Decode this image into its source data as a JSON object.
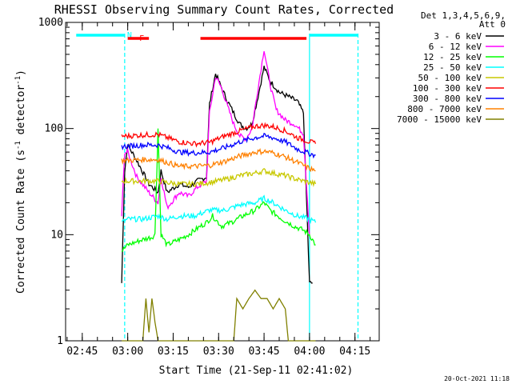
{
  "chart_data": {
    "type": "line",
    "title": "RHESSI Observing Summary Count Rates, Corrected",
    "xlabel": "Start Time (21-Sep-11 02:41:02)",
    "ylabel": "Corrected Count Rate (s⁻¹ detector⁻¹)",
    "ylabel_parts": {
      "prefix": "Corrected Count Rate (s",
      "exp1": "-1",
      "middle": " detector",
      "exp2": "-1",
      "suffix": ")"
    },
    "yscale": "log",
    "ylim": [
      1,
      1000
    ],
    "xlim_minutes_after_0245": [
      -5.5,
      98
    ],
    "x_ticks": [
      "02:45",
      "03:00",
      "03:15",
      "03:30",
      "03:45",
      "04:00",
      "04:15"
    ],
    "y_ticks": [
      "1",
      "10",
      "100",
      "1000"
    ],
    "legend_header": [
      "Det 1,3,4,5,6,9,",
      "Att 0"
    ],
    "series": [
      {
        "name": "3 - 6 keV",
        "color": "#000000",
        "points": [
          [
            "02:58",
            3.5
          ],
          [
            "02:59",
            40
          ],
          [
            "03:00",
            70
          ],
          [
            "03:03",
            50
          ],
          [
            "03:07",
            30
          ],
          [
            "03:10",
            25
          ],
          [
            "03:11",
            40
          ],
          [
            "03:13",
            25
          ],
          [
            "03:17",
            30
          ],
          [
            "03:20",
            28
          ],
          [
            "03:23",
            32
          ],
          [
            "03:26",
            35
          ],
          [
            "03:27",
            170
          ],
          [
            "03:29",
            330
          ],
          [
            "03:31",
            240
          ],
          [
            "03:33",
            180
          ],
          [
            "03:35",
            140
          ],
          [
            "03:37",
            110
          ],
          [
            "03:39",
            100
          ],
          [
            "03:41",
            110
          ],
          [
            "03:43",
            200
          ],
          [
            "03:45",
            380
          ],
          [
            "03:47",
            280
          ],
          [
            "03:50",
            220
          ],
          [
            "03:53",
            200
          ],
          [
            "03:56",
            180
          ],
          [
            "03:58",
            140
          ],
          [
            "04:00",
            3.5
          ],
          [
            "04:01",
            3.5
          ]
        ]
      },
      {
        "name": "6 - 12 keV",
        "color": "#ff00ff",
        "points": [
          [
            "02:58",
            15
          ],
          [
            "02:59",
            60
          ],
          [
            "03:00",
            60
          ],
          [
            "03:03",
            35
          ],
          [
            "03:07",
            25
          ],
          [
            "03:10",
            20
          ],
          [
            "03:11",
            35
          ],
          [
            "03:13",
            18
          ],
          [
            "03:17",
            25
          ],
          [
            "03:20",
            23
          ],
          [
            "03:23",
            28
          ],
          [
            "03:26",
            32
          ],
          [
            "03:27",
            140
          ],
          [
            "03:29",
            310
          ],
          [
            "03:31",
            240
          ],
          [
            "03:33",
            160
          ],
          [
            "03:35",
            110
          ],
          [
            "03:37",
            85
          ],
          [
            "03:39",
            80
          ],
          [
            "03:41",
            100
          ],
          [
            "03:43",
            240
          ],
          [
            "03:45",
            560
          ],
          [
            "03:47",
            260
          ],
          [
            "03:49",
            150
          ],
          [
            "03:52",
            120
          ],
          [
            "03:55",
            110
          ],
          [
            "03:58",
            90
          ],
          [
            "04:00",
            10
          ]
        ]
      },
      {
        "name": "12 - 25 keV",
        "color": "#00ff00",
        "points": [
          [
            "02:58",
            7
          ],
          [
            "03:00",
            8
          ],
          [
            "03:05",
            9
          ],
          [
            "03:08",
            9.5
          ],
          [
            "03:09",
            10
          ],
          [
            "03:10",
            100
          ],
          [
            "03:11",
            10
          ],
          [
            "03:13",
            8
          ],
          [
            "03:17",
            9
          ],
          [
            "03:20",
            10
          ],
          [
            "03:24",
            12
          ],
          [
            "03:26",
            13
          ],
          [
            "03:28",
            15
          ],
          [
            "03:31",
            12
          ],
          [
            "03:34",
            13
          ],
          [
            "03:38",
            15
          ],
          [
            "03:42",
            17
          ],
          [
            "03:45",
            20
          ],
          [
            "03:47",
            17
          ],
          [
            "03:51",
            14
          ],
          [
            "03:55",
            12
          ],
          [
            "03:58",
            11
          ],
          [
            "04:00",
            10
          ],
          [
            "04:02",
            8
          ]
        ]
      },
      {
        "name": "25 - 50 keV",
        "color": "#00ffff",
        "points": [
          [
            "02:58",
            13
          ],
          [
            "03:00",
            14
          ],
          [
            "03:05",
            14
          ],
          [
            "03:10",
            15
          ],
          [
            "03:13",
            14
          ],
          [
            "03:17",
            15
          ],
          [
            "03:22",
            15
          ],
          [
            "03:27",
            17
          ],
          [
            "03:32",
            17
          ],
          [
            "03:37",
            19
          ],
          [
            "03:42",
            20
          ],
          [
            "03:45",
            22
          ],
          [
            "03:48",
            20
          ],
          [
            "03:52",
            17
          ],
          [
            "03:56",
            15
          ],
          [
            "04:00",
            14
          ],
          [
            "04:02",
            13
          ]
        ]
      },
      {
        "name": "50 - 100 keV",
        "color": "#c8c800",
        "points": [
          [
            "02:58",
            32
          ],
          [
            "03:00",
            32
          ],
          [
            "03:05",
            32
          ],
          [
            "03:10",
            32
          ],
          [
            "03:13",
            31
          ],
          [
            "03:17",
            30
          ],
          [
            "03:22",
            30
          ],
          [
            "03:27",
            31
          ],
          [
            "03:32",
            33
          ],
          [
            "03:37",
            36
          ],
          [
            "03:42",
            38
          ],
          [
            "03:45",
            40
          ],
          [
            "03:48",
            38
          ],
          [
            "03:52",
            36
          ],
          [
            "03:56",
            33
          ],
          [
            "04:00",
            31
          ],
          [
            "04:02",
            30
          ]
        ]
      },
      {
        "name": "100 - 300 keV",
        "color": "#ff0000",
        "points": [
          [
            "02:58",
            85
          ],
          [
            "03:00",
            85
          ],
          [
            "03:05",
            87
          ],
          [
            "03:10",
            88
          ],
          [
            "03:13",
            82
          ],
          [
            "03:17",
            75
          ],
          [
            "03:22",
            72
          ],
          [
            "03:27",
            74
          ],
          [
            "03:32",
            85
          ],
          [
            "03:37",
            95
          ],
          [
            "03:42",
            105
          ],
          [
            "03:45",
            107
          ],
          [
            "03:48",
            104
          ],
          [
            "03:52",
            95
          ],
          [
            "03:56",
            82
          ],
          [
            "04:00",
            75
          ],
          [
            "04:02",
            72
          ]
        ]
      },
      {
        "name": "300 - 800 keV",
        "color": "#0000ff",
        "points": [
          [
            "02:58",
            68
          ],
          [
            "03:00",
            68
          ],
          [
            "03:05",
            70
          ],
          [
            "03:10",
            70
          ],
          [
            "03:13",
            66
          ],
          [
            "03:17",
            60
          ],
          [
            "03:22",
            59
          ],
          [
            "03:27",
            60
          ],
          [
            "03:32",
            66
          ],
          [
            "03:37",
            75
          ],
          [
            "03:42",
            82
          ],
          [
            "03:45",
            85
          ],
          [
            "03:48",
            82
          ],
          [
            "03:52",
            75
          ],
          [
            "03:56",
            64
          ],
          [
            "04:00",
            58
          ],
          [
            "04:02",
            56
          ]
        ]
      },
      {
        "name": "800 - 7000 keV",
        "color": "#ff8000",
        "points": [
          [
            "02:58",
            50
          ],
          [
            "03:00",
            50
          ],
          [
            "03:05",
            51
          ],
          [
            "03:10",
            51
          ],
          [
            "03:13",
            48
          ],
          [
            "03:17",
            44
          ],
          [
            "03:22",
            44
          ],
          [
            "03:27",
            45
          ],
          [
            "03:32",
            49
          ],
          [
            "03:37",
            55
          ],
          [
            "03:42",
            60
          ],
          [
            "03:45",
            61
          ],
          [
            "03:48",
            59
          ],
          [
            "03:52",
            54
          ],
          [
            "03:56",
            48
          ],
          [
            "04:00",
            42
          ],
          [
            "04:02",
            40
          ]
        ]
      },
      {
        "name": "7000 - 15000 keV",
        "color": "#808000",
        "points": [
          [
            "02:58",
            1
          ],
          [
            "03:05",
            1
          ],
          [
            "03:06",
            2.5
          ],
          [
            "03:07",
            1.2
          ],
          [
            "03:08",
            2.5
          ],
          [
            "03:09",
            1.5
          ],
          [
            "03:10",
            1
          ],
          [
            "03:35",
            1
          ],
          [
            "03:36",
            2.5
          ],
          [
            "03:38",
            2
          ],
          [
            "03:40",
            2.5
          ],
          [
            "03:42",
            3
          ],
          [
            "03:44",
            2.5
          ],
          [
            "03:46",
            2.5
          ],
          [
            "03:48",
            2
          ],
          [
            "03:50",
            2.5
          ],
          [
            "03:52",
            2
          ],
          [
            "03:53",
            1
          ],
          [
            "04:02",
            1
          ]
        ]
      }
    ],
    "annotations": [
      {
        "type": "bar",
        "color": "#00ffff",
        "from": "02:43",
        "to": "02:59",
        "label": "N"
      },
      {
        "type": "bar",
        "color": "#00ffff",
        "from": "04:00",
        "to": "04:16"
      },
      {
        "type": "bar",
        "color": "#ff0000",
        "from": "03:00",
        "to": "03:07",
        "label": "F"
      },
      {
        "type": "bar",
        "color": "#ff0000",
        "from": "03:24",
        "to": "03:59"
      },
      {
        "type": "vline",
        "color": "#00ffff",
        "style": "dashed",
        "at": "02:59"
      },
      {
        "type": "vline",
        "color": "#00ffff",
        "style": "solid",
        "at": "04:00"
      },
      {
        "type": "vline",
        "color": "#00ffff",
        "style": "dashed",
        "at": "04:16"
      }
    ],
    "footer_stamp": "20-Oct-2021 11:18",
    "background": "#ffffff",
    "grid": false,
    "legend": "right"
  }
}
